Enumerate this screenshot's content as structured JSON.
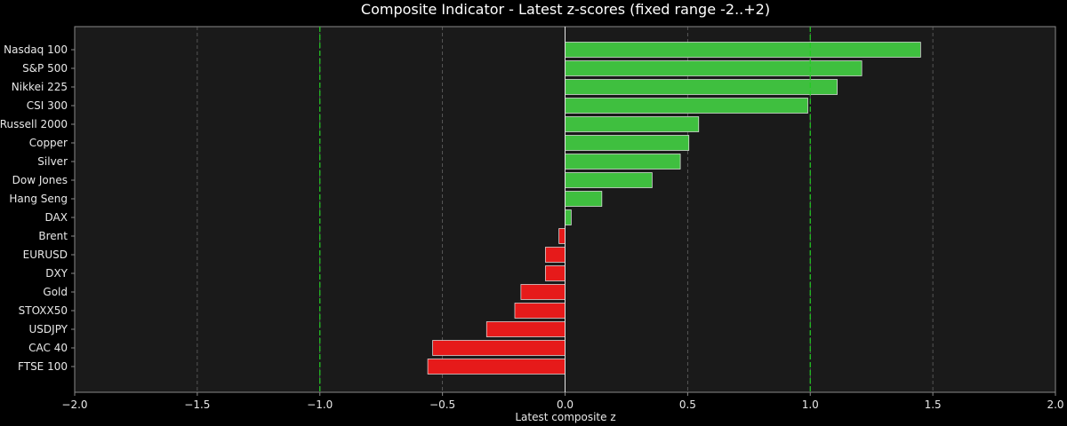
{
  "chart_data": {
    "type": "bar",
    "orientation": "horizontal",
    "title": "Composite Indicator - Latest z-scores (fixed range -2..+2)",
    "xlabel": "Latest composite z",
    "ylabel": "",
    "xlim": [
      -2.0,
      2.0
    ],
    "xticks": [
      -2.0,
      -1.5,
      -1.0,
      -0.5,
      0.0,
      0.5,
      1.0,
      1.5,
      2.0
    ],
    "xtick_labels": [
      "−2.0",
      "−1.5",
      "−1.0",
      "−0.5",
      "0.0",
      "0.5",
      "1.0",
      "1.5",
      "2.0"
    ],
    "grid": "vertical dashed",
    "reference_lines": [
      -1.0,
      1.0
    ],
    "categories": [
      "Nasdaq 100",
      "S&P 500",
      "Nikkei 225",
      "CSI 300",
      "Russell 2000",
      "Copper",
      "Silver",
      "Dow Jones",
      "Hang Seng",
      "DAX",
      "Brent",
      "EURUSD",
      "DXY",
      "Gold",
      "STOXX50",
      "USDJPY",
      "CAC 40",
      "FTSE 100"
    ],
    "values": [
      1.45,
      1.21,
      1.11,
      0.99,
      0.545,
      0.505,
      0.47,
      0.355,
      0.15,
      0.025,
      -0.025,
      -0.08,
      -0.08,
      -0.18,
      -0.205,
      -0.32,
      -0.54,
      -0.56
    ],
    "colors": {
      "positive": "#3fbf3f",
      "negative": "#e61a1a",
      "bar_edge": "#e8e8e8",
      "reference_line": "#22cc22",
      "grid": "#777777",
      "zero_line": "#e8e8e8",
      "plot_bg": "#1a1a1a",
      "figure_bg": "#000000",
      "spine": "#8a8a8a"
    }
  }
}
